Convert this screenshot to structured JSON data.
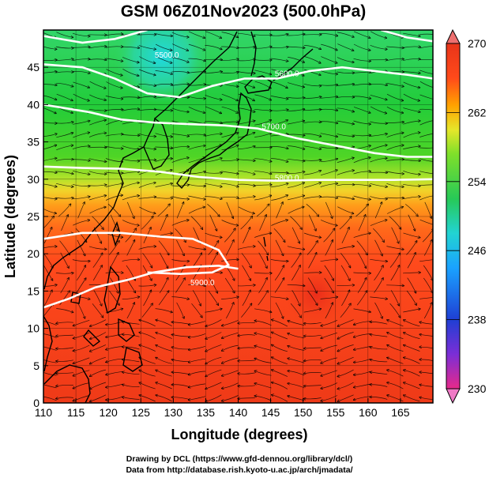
{
  "title": "GSM 06Z01Nov2023 (500.0hPa)",
  "xlabel": "Longitude (degrees)",
  "ylabel": "Latitude  (degrees)",
  "x_ticks": [
    110,
    115,
    120,
    125,
    130,
    135,
    140,
    145,
    150,
    155,
    160,
    165
  ],
  "y_ticks": [
    0,
    5,
    10,
    15,
    20,
    25,
    30,
    35,
    40,
    45
  ],
  "xlim": [
    110,
    170
  ],
  "ylim": [
    0,
    50
  ],
  "colorbar": {
    "ticks": [
      270,
      262,
      254,
      246,
      238,
      230
    ],
    "min": 230,
    "max": 270,
    "colors": [
      "#e7298a",
      "#7b2ed6",
      "#1f3fd4",
      "#1aa2ff",
      "#22d3d3",
      "#27c957",
      "#7fe02a",
      "#e6e62a",
      "#ffa300",
      "#ff4a1a",
      "#e8341a"
    ]
  },
  "contours": [
    {
      "label": "5500.0",
      "label_lon": 129,
      "label_lat": 46.3,
      "points": [
        [
          110,
          49.2
        ],
        [
          116,
          48.3
        ],
        [
          121,
          48.8
        ],
        [
          126,
          50
        ]
      ]
    },
    {
      "label": "5600.0",
      "label_lon": 147.5,
      "label_lat": 43.8,
      "points": [
        [
          110,
          45.4
        ],
        [
          116,
          45.0
        ],
        [
          121,
          43.5
        ],
        [
          126,
          41.5
        ],
        [
          131,
          41.0
        ],
        [
          136,
          42.5
        ],
        [
          141,
          43.5
        ],
        [
          146,
          43.5
        ],
        [
          151,
          44.5
        ],
        [
          156,
          45.0
        ],
        [
          161,
          44.5
        ],
        [
          166,
          44.0
        ],
        [
          170,
          43.5
        ]
      ]
    },
    {
      "label": "5700.0",
      "label_lon": 145.5,
      "label_lat": 36.7,
      "points": [
        [
          110,
          40.0
        ],
        [
          117,
          39.0
        ],
        [
          122,
          38.0
        ],
        [
          127,
          37.6
        ],
        [
          132,
          37.4
        ],
        [
          138,
          37.2
        ],
        [
          143,
          36.8
        ],
        [
          149,
          35.5
        ],
        [
          155,
          34.5
        ],
        [
          161,
          33.5
        ],
        [
          166,
          33.0
        ],
        [
          170,
          33.0
        ]
      ]
    },
    {
      "label": "5800.0",
      "label_lon": 147.5,
      "label_lat": 29.8,
      "points": [
        [
          110,
          31.7
        ],
        [
          116,
          31.5
        ],
        [
          122,
          31.4
        ],
        [
          128,
          31.0
        ],
        [
          134,
          30.3
        ],
        [
          140,
          29.9
        ],
        [
          146,
          29.8
        ],
        [
          152,
          29.9
        ],
        [
          158,
          29.9
        ],
        [
          164,
          29.9
        ],
        [
          170,
          30.0
        ]
      ]
    },
    {
      "label": "",
      "label_lon": 0,
      "label_lat": 0,
      "points": [
        [
          110,
          22.0
        ],
        [
          116,
          22.8
        ],
        [
          122,
          22.8
        ],
        [
          128,
          22.3
        ],
        [
          133,
          22.0
        ],
        [
          137,
          20.5
        ],
        [
          138.5,
          18.5
        ],
        [
          136,
          17.5
        ],
        [
          131,
          17.3
        ],
        [
          126,
          17.5
        ]
      ]
    },
    {
      "label": "5900.0",
      "label_lon": 134.5,
      "label_lat": 15.8,
      "points": [
        [
          110,
          12.8
        ],
        [
          114,
          14.0
        ],
        [
          118,
          15.5
        ],
        [
          123,
          16.5
        ],
        [
          127,
          17.5
        ],
        [
          132,
          18.2
        ],
        [
          137,
          18.4
        ],
        [
          140,
          18.0
        ]
      ]
    },
    {
      "label": "",
      "label_lon": 0,
      "label_lat": 0,
      "points": [
        [
          162,
          50.0
        ],
        [
          166,
          49.0
        ],
        [
          170,
          48.5
        ]
      ]
    }
  ],
  "credits": {
    "line1": "Drawing by DCL (https://www.gfd-dennou.org/library/dcl/)",
    "line2": "Data from http://database.rish.kyoto-u.ac.jp/arch/jmadata/"
  }
}
